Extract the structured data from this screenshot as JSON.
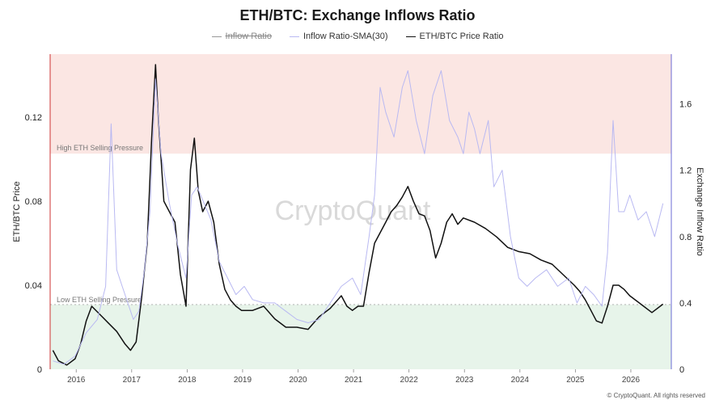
{
  "chart_data": {
    "type": "line",
    "title": "ETH/BTC: Exchange Inflows Ratio",
    "ylabel_left": "ETH/BTC Price",
    "ylabel_right": "Exchange Inflow Ratio",
    "xlabel": "",
    "x_ticks": [
      "2016",
      "2017",
      "2018",
      "2019",
      "2020",
      "2021",
      "2022",
      "2023",
      "2024",
      "2025",
      "2026"
    ],
    "x_range": [
      2015.55,
      2026.75
    ],
    "left_axis": {
      "range": [
        0,
        0.15
      ],
      "ticks": [
        0,
        0.04,
        0.08,
        0.12
      ],
      "tick_labels": [
        "0",
        "0.04",
        "0.08",
        "0.12"
      ]
    },
    "right_axis": {
      "range": [
        0,
        1.9
      ],
      "ticks": [
        0,
        0.4,
        0.8,
        1.2,
        1.6
      ],
      "tick_labels": [
        "0",
        "0.4",
        "0.8",
        "1.2",
        "1.6"
      ]
    },
    "bands": [
      {
        "label": "High ETH Selling Pressure",
        "axis": "right",
        "from": 1.3,
        "to": 1.9,
        "color": "#fbe6e3"
      },
      {
        "label": "Low ETH Selling Pressure",
        "axis": "right",
        "from": 0,
        "to": 0.39,
        "color": "#e7f4ea"
      }
    ],
    "legend": [
      {
        "name": "Inflow Ratio",
        "hidden": true,
        "color": "#999999"
      },
      {
        "name": "Inflow Ratio-SMA(30)",
        "hidden": false,
        "color": "#b9b9f2"
      },
      {
        "name": "ETH/BTC Price Ratio",
        "hidden": false,
        "color": "#111111"
      }
    ],
    "series": [
      {
        "name": "ETH/BTC Price Ratio",
        "axis": "left",
        "color": "#111111",
        "x": [
          2015.6,
          2015.7,
          2015.85,
          2016.0,
          2016.1,
          2016.2,
          2016.3,
          2016.45,
          2016.6,
          2016.75,
          2016.9,
          2017.0,
          2017.1,
          2017.2,
          2017.3,
          2017.38,
          2017.45,
          2017.5,
          2017.6,
          2017.7,
          2017.8,
          2017.9,
          2018.0,
          2018.08,
          2018.15,
          2018.22,
          2018.3,
          2018.4,
          2018.5,
          2018.6,
          2018.7,
          2018.8,
          2018.9,
          2019.0,
          2019.2,
          2019.4,
          2019.6,
          2019.8,
          2020.0,
          2020.2,
          2020.4,
          2020.6,
          2020.8,
          2020.9,
          2021.0,
          2021.1,
          2021.2,
          2021.3,
          2021.4,
          2021.5,
          2021.6,
          2021.7,
          2021.8,
          2021.9,
          2022.0,
          2022.1,
          2022.2,
          2022.3,
          2022.4,
          2022.5,
          2022.6,
          2022.7,
          2022.8,
          2022.9,
          2023.0,
          2023.2,
          2023.4,
          2023.6,
          2023.8,
          2024.0,
          2024.2,
          2024.4,
          2024.6,
          2024.8,
          2025.0,
          2025.1,
          2025.2,
          2025.3,
          2025.4,
          2025.5,
          2025.6,
          2025.7,
          2025.8,
          2025.9,
          2026.0,
          2026.2,
          2026.4,
          2026.6
        ],
        "values": [
          0.009,
          0.004,
          0.002,
          0.005,
          0.012,
          0.023,
          0.03,
          0.026,
          0.022,
          0.018,
          0.012,
          0.009,
          0.013,
          0.034,
          0.06,
          0.11,
          0.145,
          0.12,
          0.08,
          0.075,
          0.07,
          0.045,
          0.03,
          0.095,
          0.11,
          0.085,
          0.075,
          0.08,
          0.07,
          0.05,
          0.038,
          0.033,
          0.03,
          0.028,
          0.028,
          0.03,
          0.024,
          0.02,
          0.02,
          0.019,
          0.025,
          0.029,
          0.035,
          0.03,
          0.028,
          0.03,
          0.03,
          0.046,
          0.06,
          0.065,
          0.07,
          0.075,
          0.078,
          0.082,
          0.087,
          0.08,
          0.074,
          0.073,
          0.066,
          0.053,
          0.06,
          0.07,
          0.074,
          0.069,
          0.072,
          0.07,
          0.067,
          0.063,
          0.058,
          0.056,
          0.055,
          0.052,
          0.05,
          0.045,
          0.04,
          0.037,
          0.033,
          0.028,
          0.023,
          0.022,
          0.03,
          0.04,
          0.04,
          0.038,
          0.035,
          0.031,
          0.027,
          0.031
        ]
      },
      {
        "name": "Inflow Ratio-SMA(30)",
        "axis": "right",
        "color": "#b9b9f2",
        "x": [
          2015.6,
          2015.8,
          2016.0,
          2016.2,
          2016.4,
          2016.55,
          2016.65,
          2016.75,
          2016.85,
          2016.95,
          2017.05,
          2017.15,
          2017.25,
          2017.35,
          2017.45,
          2017.55,
          2017.7,
          2017.85,
          2018.0,
          2018.1,
          2018.2,
          2018.3,
          2018.45,
          2018.6,
          2018.75,
          2018.9,
          2019.05,
          2019.2,
          2019.4,
          2019.6,
          2019.8,
          2020.0,
          2020.2,
          2020.4,
          2020.6,
          2020.8,
          2021.0,
          2021.15,
          2021.3,
          2021.4,
          2021.5,
          2021.6,
          2021.75,
          2021.9,
          2022.0,
          2022.15,
          2022.3,
          2022.45,
          2022.6,
          2022.75,
          2022.9,
          2023.0,
          2023.1,
          2023.2,
          2023.3,
          2023.45,
          2023.55,
          2023.7,
          2023.85,
          2024.0,
          2024.15,
          2024.3,
          2024.5,
          2024.7,
          2024.9,
          2025.05,
          2025.2,
          2025.35,
          2025.5,
          2025.6,
          2025.7,
          2025.8,
          2025.9,
          2026.0,
          2026.15,
          2026.3,
          2026.45,
          2026.6
        ],
        "values": [
          0.05,
          0.03,
          0.08,
          0.22,
          0.3,
          0.5,
          1.48,
          0.6,
          0.5,
          0.4,
          0.3,
          0.35,
          0.6,
          0.95,
          1.75,
          1.3,
          1.0,
          0.75,
          0.55,
          1.05,
          1.1,
          1.02,
          0.9,
          0.65,
          0.55,
          0.45,
          0.5,
          0.42,
          0.4,
          0.4,
          0.35,
          0.3,
          0.28,
          0.3,
          0.4,
          0.5,
          0.55,
          0.45,
          0.8,
          1.05,
          1.7,
          1.55,
          1.4,
          1.7,
          1.8,
          1.5,
          1.3,
          1.65,
          1.8,
          1.5,
          1.4,
          1.3,
          1.55,
          1.45,
          1.3,
          1.5,
          1.1,
          1.2,
          0.8,
          0.55,
          0.5,
          0.55,
          0.6,
          0.5,
          0.55,
          0.4,
          0.5,
          0.45,
          0.38,
          0.7,
          1.5,
          0.95,
          0.95,
          1.05,
          0.9,
          0.95,
          0.8,
          1.0
        ]
      }
    ],
    "watermark": "CryptoQuant",
    "footer": "© CryptoQuant. All rights reserved"
  }
}
